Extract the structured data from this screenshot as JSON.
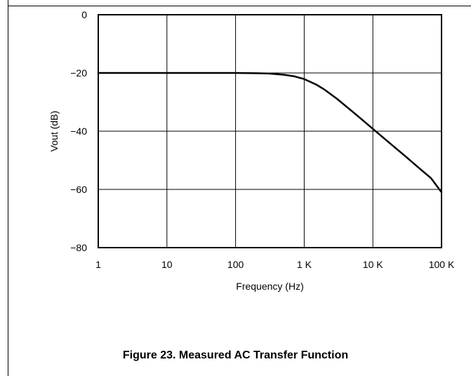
{
  "chart_data": {
    "type": "line",
    "title": "",
    "xlabel": "Frequency (Hz)",
    "ylabel": "Vout (dB)",
    "x_scale": "log",
    "xlim": [
      1,
      100000
    ],
    "ylim": [
      -80,
      0
    ],
    "x_ticks": [
      {
        "value": 1,
        "label": "1"
      },
      {
        "value": 10,
        "label": "10"
      },
      {
        "value": 100,
        "label": "100"
      },
      {
        "value": 1000,
        "label": "1 K"
      },
      {
        "value": 10000,
        "label": "10 K"
      },
      {
        "value": 100000,
        "label": "100 K"
      }
    ],
    "y_ticks": [
      {
        "value": 0,
        "label": "0"
      },
      {
        "value": -20,
        "label": "−20"
      },
      {
        "value": -40,
        "label": "−40"
      },
      {
        "value": -60,
        "label": "−60"
      },
      {
        "value": -80,
        "label": "−80"
      }
    ],
    "grid": true,
    "series": [
      {
        "color": "#000000",
        "x": [
          1,
          10,
          100,
          200,
          300,
          500,
          700,
          1000,
          1500,
          2000,
          3000,
          5000,
          7000,
          10000,
          20000,
          30000,
          50000,
          70000,
          100000
        ],
        "y": [
          -20,
          -20,
          -20,
          -20.1,
          -20.2,
          -20.6,
          -21.1,
          -22.1,
          -24,
          -25.8,
          -28.9,
          -33.2,
          -36.1,
          -39.2,
          -45.2,
          -48.7,
          -53.2,
          -56.1,
          -61
        ]
      }
    ]
  },
  "caption": "Figure 23. Measured AC Transfer Function"
}
